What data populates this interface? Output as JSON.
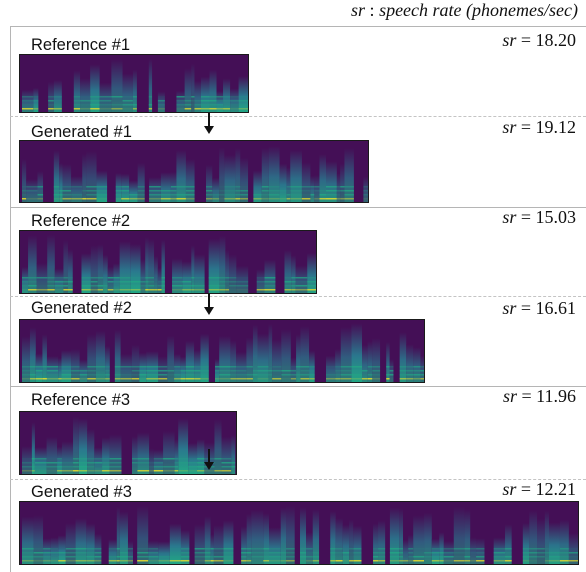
{
  "legend": {
    "sr_symbol": "sr",
    "colon": " : ",
    "desc": "speech rate (phonemes/sec)"
  },
  "panels": [
    {
      "label": "Reference #1",
      "sr_value": "18.20"
    },
    {
      "label": "Generated #1",
      "sr_value": "19.12"
    },
    {
      "label": "Reference #2",
      "sr_value": "15.03"
    },
    {
      "label": "Generated #2",
      "sr_value": "16.61"
    },
    {
      "label": "Reference #3",
      "sr_value": "11.96"
    },
    {
      "label": "Generated #3",
      "sr_value": "12.21"
    }
  ],
  "sr_prefix": "sr",
  "sr_equals": " = ",
  "colors": {
    "spec_dark": "#440f56",
    "spec_mid": "#2a788e",
    "spec_bright": "#22a884",
    "spec_peak": "#fde725"
  }
}
